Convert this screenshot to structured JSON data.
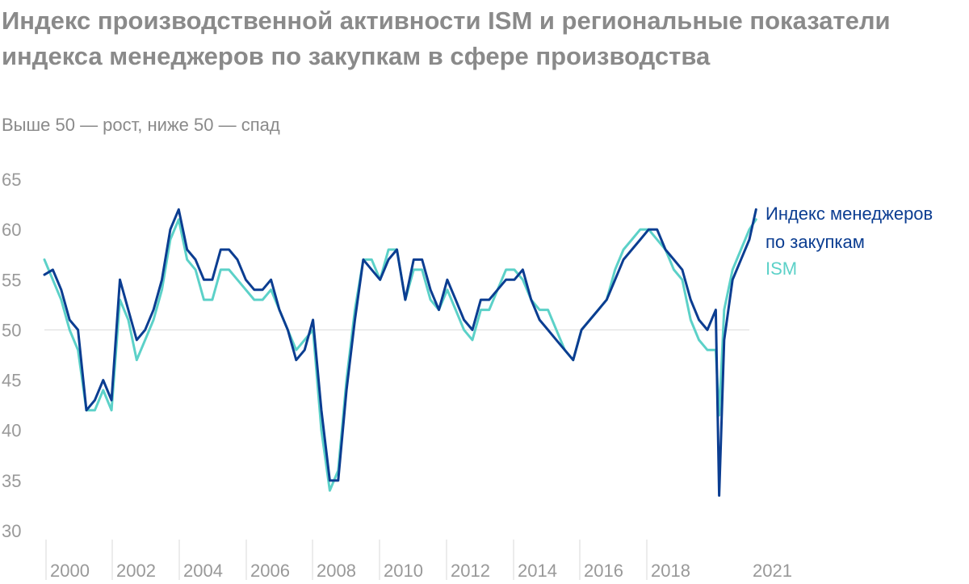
{
  "title": "Индекс производственной активности ISM и региональные показатели индекса менеджеров по закупкам в сфере производства",
  "subtitle": "Выше 50 — рост, ниже 50 — спад",
  "colors": {
    "pmi": "#0b3d91",
    "ism": "#5cd1c8",
    "ticks": "#999999",
    "grid": "#d9d9d9"
  },
  "chart_data": {
    "type": "line",
    "title": "Индекс производственной активности ISM и региональные показатели индекса менеджеров по закупкам в сфере производства",
    "subtitle": "Выше 50 — рост, ниже 50 — спад",
    "xlim": [
      2000,
      2021
    ],
    "ylim": [
      30,
      65
    ],
    "y_ticks": [
      65,
      60,
      55,
      50,
      45,
      40,
      35,
      30
    ],
    "x_ticks": [
      "2000",
      "2002",
      "2004",
      "2006",
      "2008",
      "2010",
      "2012",
      "2014",
      "2016",
      "2018",
      "2021"
    ],
    "reference_line": 50,
    "legend": "right",
    "series": [
      {
        "name": "Индекс менеджеров по закупкам",
        "legend_lines": [
          "Индекс менеджеров",
          "по закупкам"
        ],
        "color": "#0b3d91",
        "x": [
          2000.0,
          2000.25,
          2000.5,
          2000.75,
          2001.0,
          2001.25,
          2001.5,
          2001.75,
          2002.0,
          2002.25,
          2002.5,
          2002.75,
          2003.0,
          2003.25,
          2003.5,
          2003.75,
          2004.0,
          2004.25,
          2004.5,
          2004.75,
          2005.0,
          2005.25,
          2005.5,
          2005.75,
          2006.0,
          2006.25,
          2006.5,
          2006.75,
          2007.0,
          2007.25,
          2007.5,
          2007.75,
          2008.0,
          2008.25,
          2008.5,
          2008.75,
          2009.0,
          2009.25,
          2009.5,
          2009.75,
          2010.0,
          2010.25,
          2010.5,
          2010.75,
          2011.0,
          2011.25,
          2011.5,
          2011.75,
          2012.0,
          2012.25,
          2012.5,
          2012.75,
          2013.0,
          2013.25,
          2013.5,
          2013.75,
          2014.0,
          2014.25,
          2014.5,
          2014.75,
          2015.0,
          2015.25,
          2015.5,
          2015.75,
          2016.0,
          2016.25,
          2016.5,
          2016.75,
          2017.0,
          2017.25,
          2017.5,
          2017.75,
          2018.0,
          2018.25,
          2018.5,
          2018.75,
          2019.0,
          2019.25,
          2019.5,
          2019.75,
          2020.0,
          2020.1,
          2020.25,
          2020.5,
          2020.75,
          2021.0,
          2021.2
        ],
        "y": [
          55.5,
          56,
          54,
          51,
          50,
          42,
          43,
          45,
          43,
          55,
          52,
          49,
          50,
          52,
          55,
          60,
          62,
          58,
          57,
          55,
          55,
          58,
          58,
          57,
          55,
          54,
          54,
          55,
          52,
          50,
          47,
          48,
          51,
          42,
          35,
          35,
          44,
          51,
          57,
          56,
          55,
          57,
          58,
          53,
          57,
          57,
          54,
          52,
          55,
          53,
          51,
          50,
          53,
          53,
          54,
          55,
          55,
          56,
          53,
          51,
          50,
          49,
          48,
          47,
          50,
          51,
          52,
          53,
          55,
          57,
          58,
          59,
          60,
          60,
          58,
          57,
          56,
          53,
          51,
          50,
          52,
          33.5,
          49,
          55,
          57,
          59,
          62
        ]
      },
      {
        "name": "ISM",
        "legend_lines": [
          "ISM"
        ],
        "color": "#5cd1c8",
        "x": [
          2000.0,
          2000.25,
          2000.5,
          2000.75,
          2001.0,
          2001.25,
          2001.5,
          2001.75,
          2002.0,
          2002.25,
          2002.5,
          2002.75,
          2003.0,
          2003.25,
          2003.5,
          2003.75,
          2004.0,
          2004.25,
          2004.5,
          2004.75,
          2005.0,
          2005.25,
          2005.5,
          2005.75,
          2006.0,
          2006.25,
          2006.5,
          2006.75,
          2007.0,
          2007.25,
          2007.5,
          2007.75,
          2008.0,
          2008.25,
          2008.5,
          2008.75,
          2009.0,
          2009.25,
          2009.5,
          2009.75,
          2010.0,
          2010.25,
          2010.5,
          2010.75,
          2011.0,
          2011.25,
          2011.5,
          2011.75,
          2012.0,
          2012.25,
          2012.5,
          2012.75,
          2013.0,
          2013.25,
          2013.5,
          2013.75,
          2014.0,
          2014.25,
          2014.5,
          2014.75,
          2015.0,
          2015.25,
          2015.5,
          2015.75,
          2016.0,
          2016.25,
          2016.5,
          2016.75,
          2017.0,
          2017.25,
          2017.5,
          2017.75,
          2018.0,
          2018.25,
          2018.5,
          2018.75,
          2019.0,
          2019.25,
          2019.5,
          2019.75,
          2020.0,
          2020.1,
          2020.25,
          2020.5,
          2020.75,
          2021.0,
          2021.2
        ],
        "y": [
          57,
          55,
          53,
          50,
          48,
          42,
          42,
          44,
          42,
          53,
          51,
          47,
          49,
          51,
          54,
          59,
          61,
          57,
          56,
          53,
          53,
          56,
          56,
          55,
          54,
          53,
          53,
          54,
          52,
          50,
          48,
          49,
          50,
          40,
          34,
          36,
          45,
          52,
          57,
          57,
          55,
          58,
          58,
          53,
          56,
          56,
          53,
          52,
          54,
          52,
          50,
          49,
          52,
          52,
          54,
          56,
          56,
          55,
          53,
          52,
          52,
          50,
          48,
          47,
          50,
          51,
          52,
          53,
          56,
          58,
          59,
          60,
          60,
          59,
          58,
          56,
          55,
          51,
          49,
          48,
          48,
          41.5,
          52,
          56,
          58,
          60,
          61
        ]
      }
    ]
  }
}
